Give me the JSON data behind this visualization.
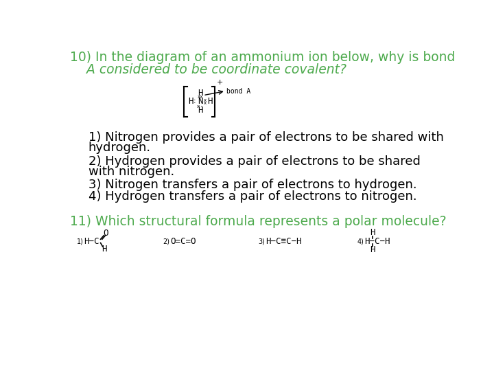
{
  "bg_color": "#ffffff",
  "green_color": "#4daa4d",
  "black": "#000000",
  "q10_line1": "10) In the diagram of an ammonium ion below, why is bond",
  "q10_line2": "    A considered to be coordinate covalent?",
  "ans1_line1": "1) Nitrogen provides a pair of electrons to be shared with",
  "ans1_line2": "hydrogen.",
  "ans2_line1": "2) Hydrogen provides a pair of electrons to be shared",
  "ans2_line2": "with nitrogen.",
  "ans3": "3) Nitrogen transfers a pair of electrons to hydrogen.",
  "ans4": "4) Hydrogen transfers a pair of electrons to nitrogen.",
  "q11": "11) Which structural formula represents a polar molecule?",
  "font_q": 13.5,
  "font_ans": 13.0,
  "font_mol": 9.0
}
